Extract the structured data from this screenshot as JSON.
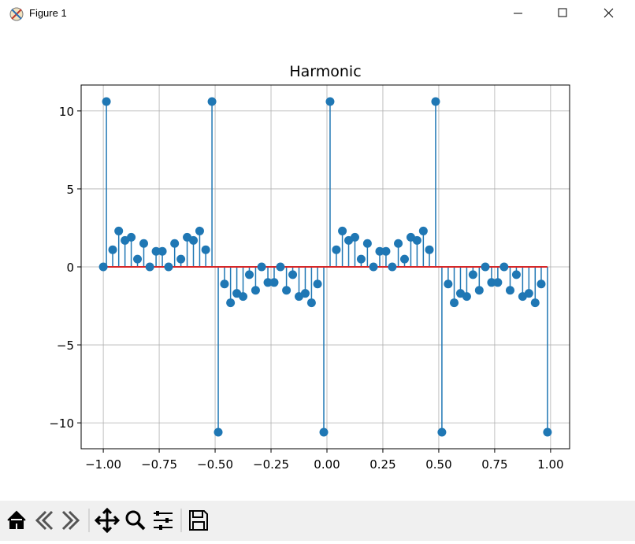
{
  "window_title": "Figure 1",
  "chart_data": {
    "type": "stem",
    "title": "Harmonic",
    "x": [
      -1.0,
      -0.986,
      -0.958,
      -0.931,
      -0.903,
      -0.875,
      -0.847,
      -0.819,
      -0.792,
      -0.764,
      -0.736,
      -0.708,
      -0.681,
      -0.653,
      -0.625,
      -0.597,
      -0.569,
      -0.542,
      -0.514,
      -0.486,
      -0.458,
      -0.431,
      -0.403,
      -0.375,
      -0.347,
      -0.319,
      -0.292,
      -0.264,
      -0.236,
      -0.208,
      -0.181,
      -0.153,
      -0.125,
      -0.097,
      -0.069,
      -0.042,
      -0.014,
      0.014,
      0.042,
      0.069,
      0.097,
      0.125,
      0.153,
      0.181,
      0.208,
      0.236,
      0.264,
      0.292,
      0.319,
      0.347,
      0.375,
      0.403,
      0.431,
      0.458,
      0.486,
      0.514,
      0.542,
      0.569,
      0.597,
      0.625,
      0.653,
      0.681,
      0.708,
      0.736,
      0.764,
      0.792,
      0.819,
      0.847,
      0.875,
      0.903,
      0.931,
      0.958,
      0.986
    ],
    "values": [
      0,
      10.6,
      1.1,
      2.3,
      1.7,
      1.9,
      0.5,
      1.5,
      0,
      1.0,
      1.0,
      0,
      1.5,
      0.5,
      1.9,
      1.7,
      2.3,
      1.1,
      10.6,
      -10.6,
      -1.1,
      -2.3,
      -1.7,
      -1.9,
      -0.5,
      -1.5,
      0,
      -1.0,
      -1.0,
      0,
      -1.5,
      -0.5,
      -1.9,
      -1.7,
      -2.3,
      -1.1,
      -10.6,
      10.6,
      1.1,
      2.3,
      1.7,
      1.9,
      0.5,
      1.5,
      0,
      1.0,
      1.0,
      0,
      1.5,
      0.5,
      1.9,
      1.7,
      2.3,
      1.1,
      10.6,
      -10.6,
      -1.1,
      -2.3,
      -1.7,
      -1.9,
      -0.5,
      -1.5,
      0,
      -1.0,
      -1.0,
      0,
      -1.5,
      -0.5,
      -1.9,
      -1.7,
      -2.3,
      -1.1,
      -10.6
    ],
    "color": "#1f77b4",
    "baseline_color": "#d62728",
    "xlim": [
      -1.099,
      1.085
    ],
    "ylim": [
      -11.66,
      11.66
    ],
    "xticks": [
      {
        "value": -1.0,
        "label": "−1.00"
      },
      {
        "value": -0.75,
        "label": "−0.75"
      },
      {
        "value": -0.5,
        "label": "−0.50"
      },
      {
        "value": -0.25,
        "label": "−0.25"
      },
      {
        "value": 0,
        "label": "0.00"
      },
      {
        "value": 0.25,
        "label": "0.25"
      },
      {
        "value": 0.5,
        "label": "0.50"
      },
      {
        "value": 0.75,
        "label": "0.75"
      },
      {
        "value": 1.0,
        "label": "1.00"
      }
    ],
    "yticks": [
      {
        "value": -10,
        "label": "−10"
      },
      {
        "value": -5,
        "label": "−5"
      },
      0,
      5,
      10
    ],
    "grid": true
  }
}
